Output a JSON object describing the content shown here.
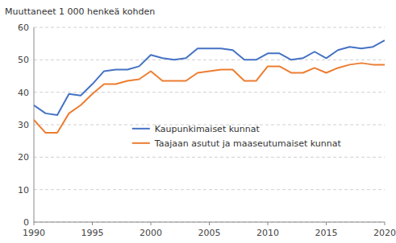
{
  "chart_data": {
    "type": "line",
    "ylabel": "Muuttaneet 1 000 henkeä kohden",
    "x": [
      1990,
      1991,
      1992,
      1993,
      1994,
      1995,
      1996,
      1997,
      1998,
      1999,
      2000,
      2001,
      2002,
      2003,
      2004,
      2005,
      2006,
      2007,
      2008,
      2009,
      2010,
      2011,
      2012,
      2013,
      2014,
      2015,
      2016,
      2017,
      2018,
      2019,
      2020
    ],
    "series": [
      {
        "name": "Kaupunkimaiset kunnat",
        "color": "#4472C4",
        "values": [
          36.0,
          33.5,
          33.0,
          39.5,
          39.0,
          42.5,
          46.5,
          47.0,
          47.0,
          48.0,
          51.5,
          50.5,
          50.0,
          50.5,
          53.5,
          53.5,
          53.5,
          53.0,
          50.0,
          50.0,
          52.0,
          52.0,
          50.0,
          50.5,
          52.5,
          50.5,
          53.0,
          54.0,
          53.5,
          54.0,
          56.0
        ]
      },
      {
        "name": "Taajaan asutut ja maaseutumaiset kunnat",
        "color": "#ED7D31",
        "values": [
          31.5,
          27.5,
          27.5,
          33.5,
          36.0,
          39.5,
          42.5,
          42.5,
          43.5,
          44.0,
          46.5,
          43.5,
          43.5,
          43.5,
          46.0,
          46.5,
          47.0,
          47.0,
          43.5,
          43.5,
          48.0,
          48.0,
          46.0,
          46.0,
          47.5,
          46.0,
          47.5,
          48.5,
          49.0,
          48.5,
          48.5
        ]
      }
    ],
    "xlim": [
      1990,
      2020
    ],
    "xticks": [
      1990,
      1995,
      2000,
      2005,
      2010,
      2015,
      2020
    ],
    "ylim": [
      0,
      60
    ],
    "yticks": [
      0,
      10,
      20,
      30,
      40,
      50,
      60
    ],
    "grid": true,
    "legend": "center"
  }
}
